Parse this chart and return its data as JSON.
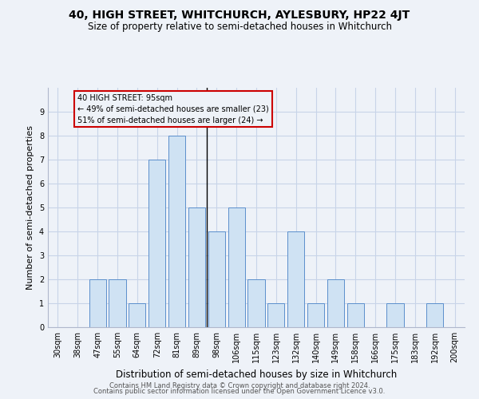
{
  "title": "40, HIGH STREET, WHITCHURCH, AYLESBURY, HP22 4JT",
  "subtitle": "Size of property relative to semi-detached houses in Whitchurch",
  "xlabel": "Distribution of semi-detached houses by size in Whitchurch",
  "ylabel": "Number of semi-detached properties",
  "footer1": "Contains HM Land Registry data © Crown copyright and database right 2024.",
  "footer2": "Contains public sector information licensed under the Open Government Licence v3.0.",
  "annotation_title": "40 HIGH STREET: 95sqm",
  "annotation_line1": "← 49% of semi-detached houses are smaller (23)",
  "annotation_line2": "51% of semi-detached houses are larger (24) →",
  "bar_color": "#cfe2f3",
  "bar_edgecolor": "#5b8fcc",
  "line_color": "#000000",
  "annotation_box_edgecolor": "#cc0000",
  "categories": [
    "30sqm",
    "38sqm",
    "47sqm",
    "55sqm",
    "64sqm",
    "72sqm",
    "81sqm",
    "89sqm",
    "98sqm",
    "106sqm",
    "115sqm",
    "123sqm",
    "132sqm",
    "140sqm",
    "149sqm",
    "158sqm",
    "166sqm",
    "175sqm",
    "183sqm",
    "192sqm",
    "200sqm"
  ],
  "values": [
    0,
    0,
    2,
    2,
    1,
    7,
    8,
    5,
    4,
    5,
    2,
    1,
    4,
    1,
    2,
    1,
    0,
    1,
    0,
    1,
    0
  ],
  "ylim": [
    0,
    10
  ],
  "yticks": [
    0,
    1,
    2,
    3,
    4,
    5,
    6,
    7,
    8,
    9,
    10
  ],
  "grid_color": "#c8d4e8",
  "background_color": "#eef2f8",
  "title_fontsize": 10,
  "subtitle_fontsize": 8.5,
  "ylabel_fontsize": 8,
  "xlabel_fontsize": 8.5,
  "tick_fontsize": 7,
  "annotation_fontsize": 7,
  "footer_fontsize": 6
}
